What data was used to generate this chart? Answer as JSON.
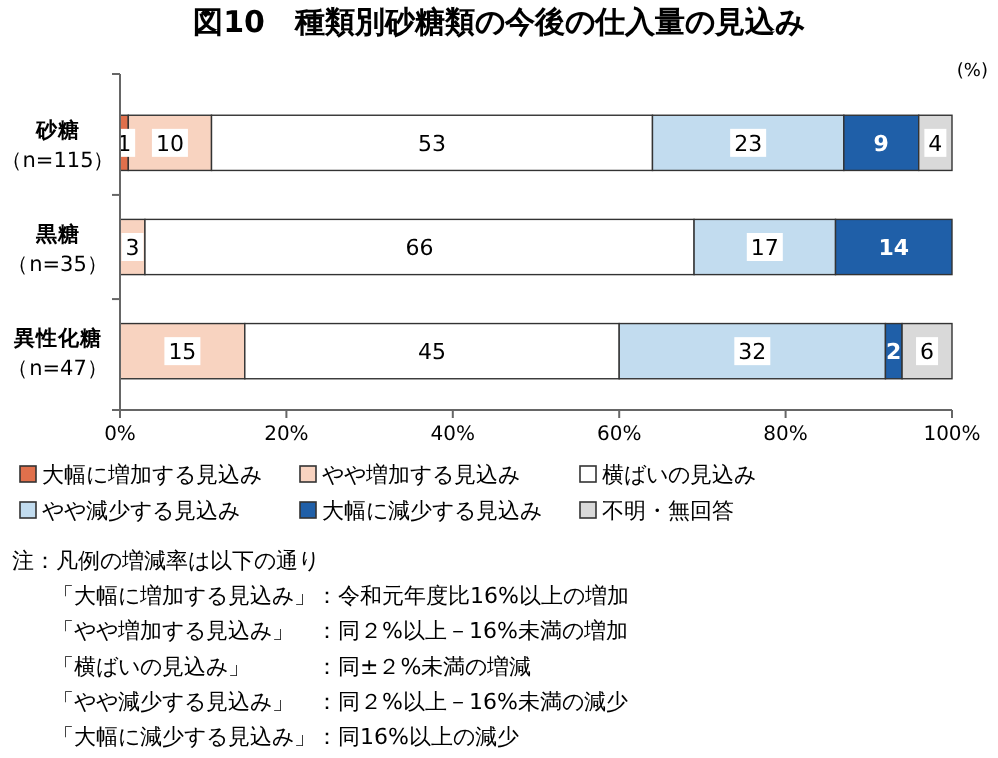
{
  "chart_data": {
    "type": "bar",
    "orientation": "horizontal",
    "stacked": true,
    "title": "図10　種類別砂糖類の今後の仕入量の見込み",
    "xlabel": "(%)",
    "categories": [
      "砂糖（n=115）",
      "黒糖（n=35）",
      "異性化糖（n=47）"
    ],
    "series": [
      {
        "name": "大幅に増加する見込み",
        "color": "#e0704c",
        "values": [
          1,
          0,
          0
        ],
        "value_labels": [
          "1",
          null,
          null
        ]
      },
      {
        "name": "やや増加する見込み",
        "color": "#f8d3c0",
        "values": [
          10,
          3,
          15
        ],
        "value_labels": [
          "10",
          "3",
          "15"
        ]
      },
      {
        "name": "横ばいの見込み",
        "color": "#ffffff",
        "values": [
          53,
          66,
          45
        ],
        "value_labels": [
          "53",
          "66",
          "45"
        ]
      },
      {
        "name": "やや減少する見込み",
        "color": "#c2dcef",
        "values": [
          23,
          17,
          32
        ],
        "value_labels": [
          "23",
          "17",
          "32"
        ]
      },
      {
        "name": "大幅に減少する見込み",
        "color": "#1f5fa8",
        "values": [
          9,
          14,
          2
        ],
        "value_labels": [
          "9",
          "14",
          "2"
        ]
      },
      {
        "name": "不明・無回答",
        "color": "#d9d9d9",
        "values": [
          4,
          0,
          6
        ],
        "value_labels": [
          "4",
          null,
          "6"
        ]
      }
    ],
    "xlim": [
      0,
      100
    ],
    "xticks": [
      {
        "value": 0,
        "label": "0%"
      },
      {
        "value": 20,
        "label": "20%"
      },
      {
        "value": 40,
        "label": "40%"
      },
      {
        "value": 60,
        "label": "60%"
      },
      {
        "value": 80,
        "label": "80%"
      },
      {
        "value": 100,
        "label": "100%"
      }
    ],
    "grid": false,
    "legend": "bottom",
    "annotations": [
      "注：凡例の増減率は以下の通り",
      "「大幅に増加する見込み」：令和元年度比16%以上の増加",
      "「やや増加する見込み」　：同２%以上－16%未満の増加",
      "「横ばいの見込み」　　　：同±２%未満の増減",
      "「やや減少する見込み」　：同２%以上－16%未満の減少",
      "「大幅に減少する見込み」：同16%以上の減少"
    ]
  }
}
